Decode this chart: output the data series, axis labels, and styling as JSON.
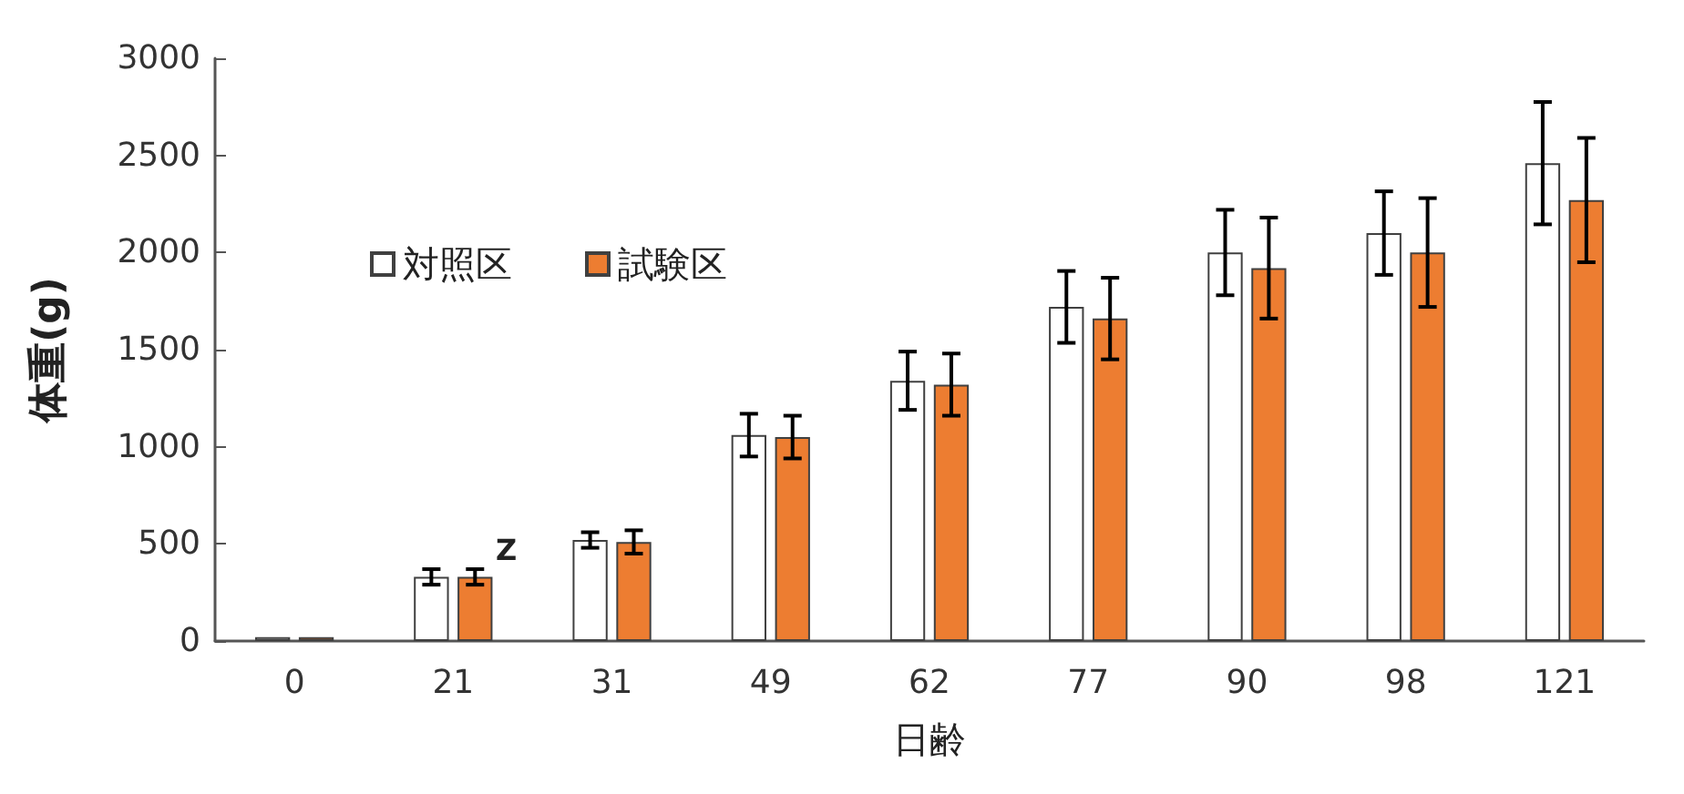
{
  "chart_data": {
    "type": "bar",
    "xlabel": "日齢",
    "ylabel": "体重(g)",
    "categories": [
      "0",
      "21",
      "31",
      "49",
      "62",
      "77",
      "90",
      "98",
      "121"
    ],
    "series": [
      {
        "name": "対照区",
        "color": "#ffffff",
        "values": [
          20,
          330,
          520,
          1060,
          1340,
          1720,
          2000,
          2100,
          2460
        ],
        "errors": [
          null,
          40,
          40,
          110,
          150,
          185,
          220,
          215,
          315
        ]
      },
      {
        "name": "試験区",
        "color": "#ed7d31",
        "values": [
          20,
          330,
          510,
          1050,
          1320,
          1660,
          1920,
          2000,
          2270
        ],
        "errors": [
          null,
          40,
          60,
          110,
          160,
          210,
          260,
          280,
          320
        ]
      }
    ],
    "ylim": [
      0,
      3000
    ],
    "yticks": [
      0,
      500,
      1000,
      1500,
      2000,
      2500,
      3000
    ],
    "grid": false,
    "legend": "top left",
    "annotations": [
      "Z"
    ]
  }
}
